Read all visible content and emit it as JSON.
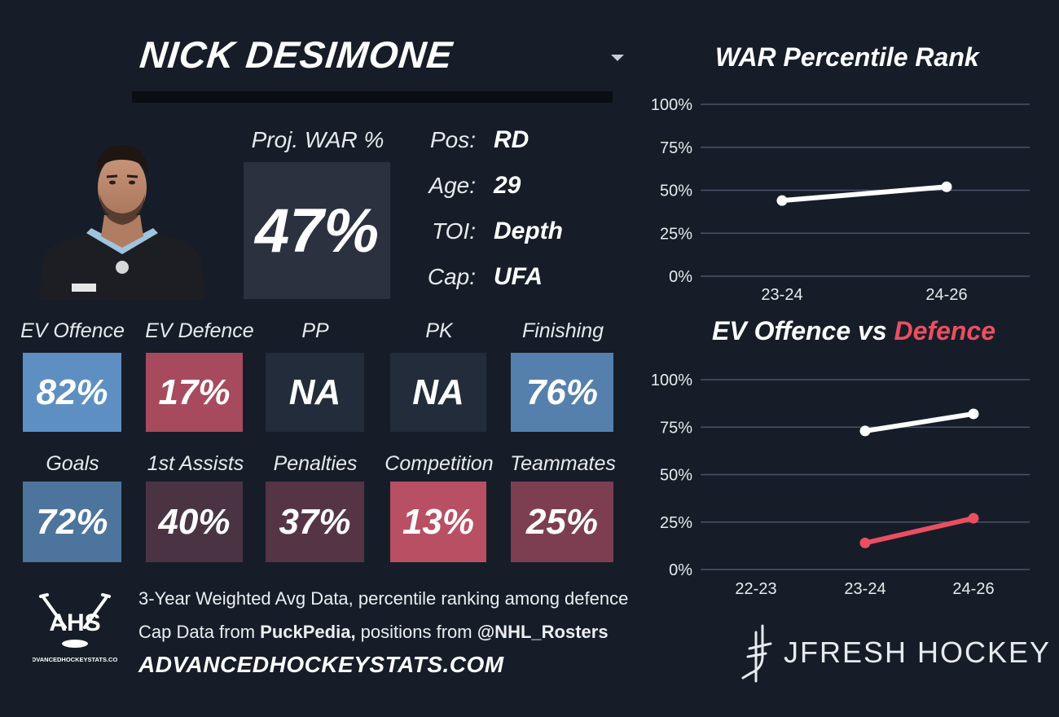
{
  "header": {
    "player_name": "NICK DESIMONE"
  },
  "proj_war": {
    "label": "Proj. WAR %",
    "value": "47%"
  },
  "info": [
    {
      "label": "Pos:",
      "value": "RD"
    },
    {
      "label": "Age:",
      "value": "29"
    },
    {
      "label": "TOI:",
      "value": "Depth"
    },
    {
      "label": "Cap:",
      "value": "UFA"
    }
  ],
  "stats_row1": [
    {
      "label": "EV Offence",
      "value": "82%",
      "color": "#5d8fc2"
    },
    {
      "label": "EV Defence",
      "value": "17%",
      "color": "#a84a5e"
    },
    {
      "label": "PP",
      "value": "NA",
      "color": "#222c3a"
    },
    {
      "label": "PK",
      "value": "NA",
      "color": "#222c3a"
    },
    {
      "label": "Finishing",
      "value": "76%",
      "color": "#5580ad"
    }
  ],
  "stats_row2": [
    {
      "label": "Goals",
      "value": "72%",
      "color": "#4d749c"
    },
    {
      "label": "1st Assists",
      "value": "40%",
      "color": "#4a3444"
    },
    {
      "label": "Penalties",
      "value": "37%",
      "color": "#553446"
    },
    {
      "label": "Competition",
      "value": "13%",
      "color": "#b84f62"
    },
    {
      "label": "Teammates",
      "value": "25%",
      "color": "#7e3e52"
    }
  ],
  "footer": {
    "line1": "3-Year Weighted Avg Data, percentile ranking among defence",
    "line2_prefix": "Cap Data from ",
    "line2_bold1": "PuckPedia,",
    "line2_middle": " positions from ",
    "line2_bold2": "@NHL_Rosters",
    "site_url": "ADVANCEDHOCKEYSTATS.COM",
    "ahs_logo_text": "AHS",
    "ahs_logo_subtext": "ADVANCEDHOCKEYSTATS.COM",
    "brand_text": "JFRESH HOCKEY"
  },
  "chart_data": [
    {
      "type": "line",
      "title": "WAR Percentile Rank",
      "categories": [
        "23-24",
        "24-26"
      ],
      "series": [
        {
          "values": [
            44,
            52
          ],
          "color": "#ffffff"
        }
      ],
      "yticks": [
        "0%",
        "25%",
        "50%",
        "75%",
        "100%"
      ],
      "ylim": [
        0,
        100
      ],
      "grid": true
    },
    {
      "type": "line",
      "title_parts": [
        "EV Offence vs ",
        "Defence"
      ],
      "categories": [
        "22-23",
        "23-24",
        "24-26"
      ],
      "series": [
        {
          "values": [
            null,
            73,
            82
          ],
          "color": "#ffffff"
        },
        {
          "values": [
            null,
            14,
            27
          ],
          "color": "#ea4f60"
        }
      ],
      "yticks": [
        "0%",
        "25%",
        "50%",
        "75%",
        "100%"
      ],
      "ylim": [
        0,
        100
      ],
      "grid": true
    }
  ],
  "colors": {
    "background": "#161d28",
    "offence_line": "#ffffff",
    "defence_line": "#ea4f60",
    "gridline": "#4a5468"
  }
}
